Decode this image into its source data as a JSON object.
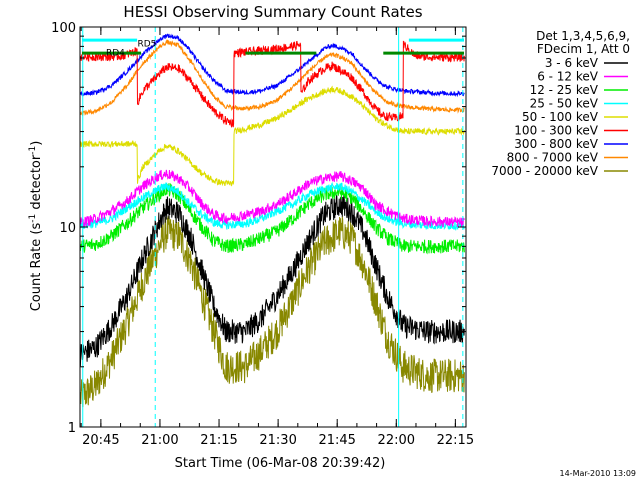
{
  "chart_data": {
    "type": "line",
    "title": "HESSI Observing Summary Count Rates",
    "xlabel": "Start Time (06-Mar-08 20:39:42)",
    "ylabel_main": "Count Rate (s",
    "ylabel_sup1": "-1",
    "ylabel_mid": " detector",
    "ylabel_sup2": "-1",
    "ylabel_end": ")",
    "y_scale": "log",
    "ylim": [
      1,
      100
    ],
    "x_units": "minutes after 20:39:42",
    "xlim": [
      0,
      98
    ],
    "x_ticks": [
      {
        "label": "20:45",
        "x": 5.3
      },
      {
        "label": "21:00",
        "x": 20.3
      },
      {
        "label": "21:15",
        "x": 35.3
      },
      {
        "label": "21:30",
        "x": 50.3
      },
      {
        "label": "21:45",
        "x": 65.3
      },
      {
        "label": "22:00",
        "x": 80.3
      },
      {
        "label": "22:15",
        "x": 95.3
      }
    ],
    "y_ticks": [
      {
        "label": "1",
        "y": 1
      },
      {
        "label": "10",
        "y": 10
      },
      {
        "label": "100",
        "y": 100
      }
    ],
    "legend_header": [
      "Det 1,3,4,5,6,9,",
      "FDecim 1, Att 0"
    ],
    "legend_position": "right",
    "timestamp": "14-Mar-2010 13:09",
    "annotations": [
      {
        "text": "RD5",
        "x": 17,
        "y": 80
      },
      {
        "text": "RD4",
        "x": 9,
        "y": 72
      }
    ],
    "markers": {
      "cyan_solid": [
        0.7,
        80.9
      ],
      "cyan_dashed": [
        19.1,
        97.2
      ],
      "top_bars_cyan": [
        [
          0.5,
          14.5
        ],
        [
          83.5,
          97.5
        ]
      ],
      "top_bars_cyan_y": 86,
      "green_level_lines": [
        [
          0.5,
          15.5
        ],
        [
          42,
          60
        ],
        [
          77,
          97.5
        ]
      ],
      "green_level_y": 74
    },
    "series": [
      {
        "name": "3 - 6 keV",
        "color": "#000000",
        "noise": 0.14,
        "pts": [
          [
            0,
            2.3
          ],
          [
            4,
            2.5
          ],
          [
            8,
            3.2
          ],
          [
            12,
            4.5
          ],
          [
            16,
            7
          ],
          [
            20,
            10.5
          ],
          [
            22,
            12.5
          ],
          [
            25,
            11.8
          ],
          [
            28,
            9
          ],
          [
            31,
            6
          ],
          [
            34,
            4
          ],
          [
            37,
            3
          ],
          [
            42,
            3
          ],
          [
            46,
            3.5
          ],
          [
            50,
            4.5
          ],
          [
            54,
            6
          ],
          [
            58,
            8.5
          ],
          [
            62,
            11.5
          ],
          [
            66,
            13
          ],
          [
            69,
            12
          ],
          [
            72,
            9.5
          ],
          [
            75,
            6.5
          ],
          [
            78,
            4.5
          ],
          [
            82,
            3.2
          ],
          [
            88,
            3
          ],
          [
            94,
            3
          ],
          [
            97.5,
            3
          ]
        ]
      },
      {
        "name": "6 - 12 keV",
        "color": "#ff00ff",
        "noise": 0.06,
        "pts": [
          [
            0,
            10.5
          ],
          [
            4,
            11
          ],
          [
            8,
            12
          ],
          [
            12,
            13.5
          ],
          [
            16,
            16
          ],
          [
            20,
            18
          ],
          [
            22,
            18.5
          ],
          [
            25,
            17.5
          ],
          [
            28,
            15.5
          ],
          [
            31,
            13
          ],
          [
            34,
            11.5
          ],
          [
            37,
            11
          ],
          [
            42,
            11.5
          ],
          [
            46,
            12
          ],
          [
            50,
            13
          ],
          [
            54,
            14.5
          ],
          [
            58,
            16.5
          ],
          [
            62,
            17.5
          ],
          [
            66,
            18
          ],
          [
            69,
            17
          ],
          [
            72,
            15.5
          ],
          [
            75,
            13
          ],
          [
            78,
            12
          ],
          [
            82,
            11
          ],
          [
            88,
            10.7
          ],
          [
            94,
            10.6
          ],
          [
            97.5,
            10.5
          ]
        ]
      },
      {
        "name": "12 - 25 keV",
        "color": "#00ee00",
        "noise": 0.08,
        "pts": [
          [
            0,
            8
          ],
          [
            4,
            8.2
          ],
          [
            8,
            9
          ],
          [
            12,
            10.5
          ],
          [
            16,
            12.5
          ],
          [
            20,
            14.5
          ],
          [
            22,
            15.5
          ],
          [
            25,
            14.5
          ],
          [
            28,
            12
          ],
          [
            31,
            10
          ],
          [
            34,
            8.5
          ],
          [
            37,
            8
          ],
          [
            42,
            8.2
          ],
          [
            46,
            8.8
          ],
          [
            50,
            9.5
          ],
          [
            54,
            11
          ],
          [
            58,
            13
          ],
          [
            62,
            14.5
          ],
          [
            66,
            15
          ],
          [
            69,
            14
          ],
          [
            72,
            12
          ],
          [
            75,
            10
          ],
          [
            78,
            8.8
          ],
          [
            82,
            8
          ],
          [
            88,
            8
          ],
          [
            94,
            8
          ],
          [
            97.5,
            8
          ]
        ]
      },
      {
        "name": "25 - 50 keV",
        "color": "#00ffff",
        "noise": 0.05,
        "pts": [
          [
            0,
            10.2
          ],
          [
            4,
            10.4
          ],
          [
            8,
            11
          ],
          [
            12,
            12.5
          ],
          [
            16,
            14
          ],
          [
            20,
            15.5
          ],
          [
            22,
            16
          ],
          [
            25,
            15
          ],
          [
            28,
            13
          ],
          [
            31,
            11.5
          ],
          [
            34,
            10.5
          ],
          [
            37,
            10.2
          ],
          [
            42,
            10.4
          ],
          [
            46,
            11
          ],
          [
            50,
            12
          ],
          [
            54,
            13
          ],
          [
            58,
            14.5
          ],
          [
            62,
            15.5
          ],
          [
            66,
            16
          ],
          [
            69,
            15
          ],
          [
            72,
            13.5
          ],
          [
            75,
            12
          ],
          [
            78,
            11
          ],
          [
            82,
            10.4
          ],
          [
            88,
            10.2
          ],
          [
            94,
            10.2
          ],
          [
            97.5,
            10.2
          ]
        ]
      },
      {
        "name": "50 - 100 keV",
        "color": "#dddd00",
        "noise": 0.035,
        "pts": [
          [
            0,
            26
          ],
          [
            14.5,
            26
          ],
          [
            14.6,
            17
          ],
          [
            16,
            20
          ],
          [
            20,
            24
          ],
          [
            22,
            25.5
          ],
          [
            25,
            24
          ],
          [
            28,
            21
          ],
          [
            31,
            18.5
          ],
          [
            34,
            17
          ],
          [
            37,
            16.5
          ],
          [
            39,
            16.5
          ],
          [
            39.1,
            30
          ],
          [
            42,
            31
          ],
          [
            46,
            32.5
          ],
          [
            50,
            35
          ],
          [
            54,
            39
          ],
          [
            58,
            44
          ],
          [
            62,
            47.5
          ],
          [
            64,
            49
          ],
          [
            66,
            48
          ],
          [
            69,
            45
          ],
          [
            72,
            40
          ],
          [
            75,
            35
          ],
          [
            78,
            32
          ],
          [
            82,
            30
          ],
          [
            88,
            30
          ],
          [
            94,
            30
          ],
          [
            97.5,
            30
          ]
        ]
      },
      {
        "name": "100 - 300 keV",
        "color": "#ff0000",
        "noise": 0.05,
        "pts": [
          [
            0,
            71
          ],
          [
            4,
            71
          ],
          [
            8,
            71
          ],
          [
            11,
            72
          ],
          [
            13,
            74
          ],
          [
            14.5,
            76
          ],
          [
            14.6,
            42
          ],
          [
            16,
            48
          ],
          [
            20,
            58
          ],
          [
            22,
            63
          ],
          [
            25,
            62
          ],
          [
            28,
            54
          ],
          [
            31,
            45
          ],
          [
            34,
            38
          ],
          [
            37,
            34
          ],
          [
            39,
            33
          ],
          [
            39.1,
            74
          ],
          [
            42,
            75
          ],
          [
            46,
            76
          ],
          [
            50,
            78
          ],
          [
            54,
            80
          ],
          [
            56,
            82
          ],
          [
            56.1,
            46
          ],
          [
            58,
            54
          ],
          [
            62,
            62
          ],
          [
            64,
            64
          ],
          [
            66,
            61
          ],
          [
            69,
            56
          ],
          [
            72,
            47
          ],
          [
            75,
            39
          ],
          [
            77,
            36
          ],
          [
            80,
            35
          ],
          [
            82,
            36
          ],
          [
            82.1,
            82
          ],
          [
            85,
            72
          ],
          [
            88,
            71
          ],
          [
            92,
            70.5
          ],
          [
            97.5,
            70.5
          ]
        ]
      },
      {
        "name": "300 - 800 keV",
        "color": "#0000ff",
        "noise": 0.025,
        "pts": [
          [
            0,
            46
          ],
          [
            4,
            47
          ],
          [
            8,
            51
          ],
          [
            12,
            60
          ],
          [
            16,
            73
          ],
          [
            20,
            86
          ],
          [
            22,
            91
          ],
          [
            25,
            88
          ],
          [
            28,
            76
          ],
          [
            31,
            63
          ],
          [
            34,
            54
          ],
          [
            37,
            48
          ],
          [
            42,
            47
          ],
          [
            46,
            48
          ],
          [
            50,
            51
          ],
          [
            54,
            58
          ],
          [
            58,
            67
          ],
          [
            62,
            78
          ],
          [
            64,
            81
          ],
          [
            66,
            79
          ],
          [
            69,
            74
          ],
          [
            72,
            63
          ],
          [
            75,
            55
          ],
          [
            78,
            50
          ],
          [
            82,
            48
          ],
          [
            88,
            47
          ],
          [
            94,
            46.5
          ],
          [
            97.5,
            46.5
          ]
        ]
      },
      {
        "name": "800 - 7000 keV",
        "color": "#ff8800",
        "noise": 0.025,
        "pts": [
          [
            0,
            37
          ],
          [
            4,
            38
          ],
          [
            8,
            42
          ],
          [
            12,
            51
          ],
          [
            16,
            66
          ],
          [
            20,
            79
          ],
          [
            22,
            84
          ],
          [
            25,
            81
          ],
          [
            28,
            68
          ],
          [
            31,
            55
          ],
          [
            34,
            45
          ],
          [
            37,
            40
          ],
          [
            42,
            39
          ],
          [
            46,
            40
          ],
          [
            50,
            43
          ],
          [
            54,
            50
          ],
          [
            58,
            60
          ],
          [
            62,
            70
          ],
          [
            64,
            73
          ],
          [
            66,
            71
          ],
          [
            69,
            66
          ],
          [
            72,
            55
          ],
          [
            75,
            47
          ],
          [
            78,
            42
          ],
          [
            82,
            40
          ],
          [
            88,
            39
          ],
          [
            94,
            38.5
          ],
          [
            97.5,
            38.5
          ]
        ]
      },
      {
        "name": "7000 - 20000 keV",
        "color": "#888800",
        "noise": 0.2,
        "pts": [
          [
            0,
            1.4
          ],
          [
            4,
            1.6
          ],
          [
            8,
            2.2
          ],
          [
            12,
            3.3
          ],
          [
            16,
            5.3
          ],
          [
            20,
            8
          ],
          [
            22,
            9.5
          ],
          [
            25,
            9
          ],
          [
            28,
            6.8
          ],
          [
            31,
            4.5
          ],
          [
            34,
            3
          ],
          [
            37,
            2
          ],
          [
            42,
            2
          ],
          [
            46,
            2.4
          ],
          [
            50,
            3
          ],
          [
            54,
            4.3
          ],
          [
            58,
            6.2
          ],
          [
            62,
            8.3
          ],
          [
            66,
            9.5
          ],
          [
            69,
            8.8
          ],
          [
            72,
            6.5
          ],
          [
            75,
            4.3
          ],
          [
            78,
            2.8
          ],
          [
            82,
            2
          ],
          [
            88,
            1.8
          ],
          [
            94,
            1.8
          ],
          [
            97.5,
            1.8
          ]
        ]
      }
    ]
  }
}
